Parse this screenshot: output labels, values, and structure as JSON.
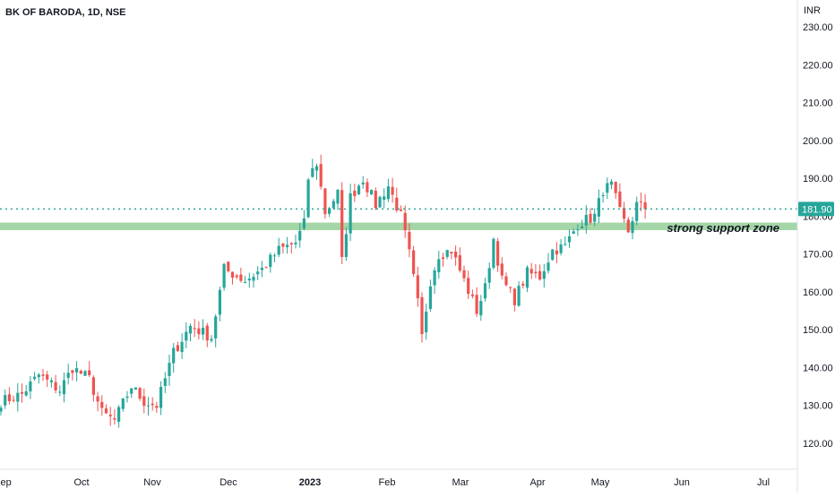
{
  "chart_data": {
    "type": "candlestick",
    "title": "BK OF BARODA, 1D, NSE",
    "y_unit": "INR",
    "ylim": [
      113,
      233
    ],
    "y_ticks": [
      120,
      130,
      140,
      150,
      160,
      170,
      180,
      190,
      200,
      210,
      220,
      230
    ],
    "y_tick_labels": [
      "120.00",
      "130.00",
      "140.00",
      "150.00",
      "160.00",
      "170.00",
      "180.00",
      "190.00",
      "200.00",
      "210.00",
      "220.00",
      "230.00"
    ],
    "x_tick_labels": [
      "Sep",
      "Oct",
      "Nov",
      "Dec",
      "2023",
      "Feb",
      "Mar",
      "Apr",
      "May",
      "Jun",
      "Jul"
    ],
    "last_price": 181.9,
    "last_price_label": "181.90",
    "support_zone": {
      "low": 176.3,
      "high": 178.3,
      "label": "strong support zone"
    },
    "colors": {
      "up": "#26a69a",
      "down": "#ef5350",
      "zone": "#a5d6a7",
      "price_line": "#26a69a",
      "grid": "#ffffff"
    },
    "grid": false,
    "waypoints": [
      [
        0,
        131
      ],
      [
        5,
        133
      ],
      [
        9,
        138
      ],
      [
        14,
        134
      ],
      [
        17,
        140
      ],
      [
        21,
        137
      ],
      [
        24,
        128
      ],
      [
        27,
        126
      ],
      [
        31,
        135
      ],
      [
        34,
        131
      ],
      [
        37,
        130
      ],
      [
        41,
        144
      ],
      [
        45,
        151
      ],
      [
        50,
        148
      ],
      [
        53,
        166
      ],
      [
        58,
        163
      ],
      [
        62,
        166
      ],
      [
        66,
        171
      ],
      [
        70,
        173
      ],
      [
        72,
        178
      ],
      [
        73,
        190
      ],
      [
        75,
        194
      ],
      [
        77,
        181
      ],
      [
        80,
        186
      ],
      [
        81,
        168
      ],
      [
        83,
        185
      ],
      [
        86,
        190
      ],
      [
        89,
        183
      ],
      [
        92,
        188
      ],
      [
        95,
        180
      ],
      [
        97,
        170
      ],
      [
        99,
        157
      ],
      [
        100,
        148
      ],
      [
        102,
        163
      ],
      [
        104,
        170
      ],
      [
        107,
        171
      ],
      [
        110,
        163
      ],
      [
        113,
        155
      ],
      [
        115,
        161
      ],
      [
        117,
        174
      ],
      [
        119,
        163
      ],
      [
        122,
        158
      ],
      [
        125,
        165
      ],
      [
        128,
        164
      ],
      [
        131,
        171
      ],
      [
        134,
        172
      ],
      [
        137,
        178
      ],
      [
        141,
        180
      ],
      [
        143,
        187
      ],
      [
        145,
        188
      ],
      [
        147,
        181
      ],
      [
        149,
        176
      ],
      [
        151,
        183
      ],
      [
        153,
        182
      ]
    ]
  }
}
